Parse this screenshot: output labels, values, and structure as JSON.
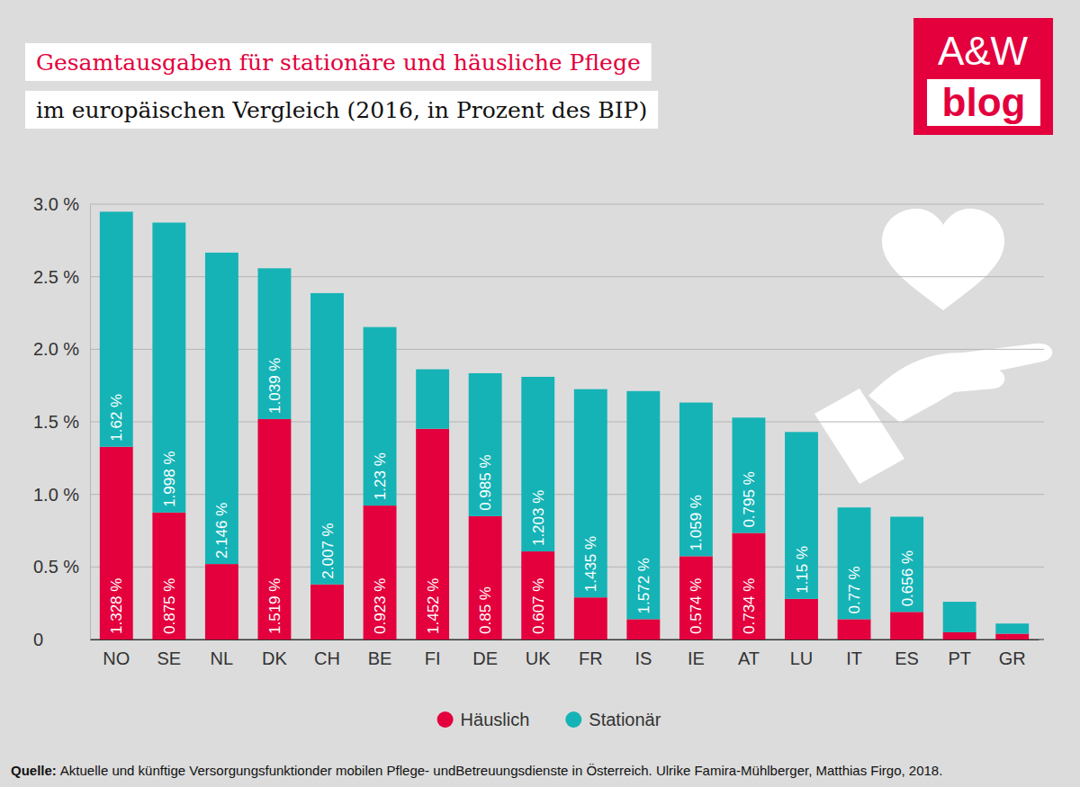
{
  "chart_data": {
    "type": "bar",
    "title": "Gesamtausgaben für stationäre und häusliche Pflege",
    "subtitle": "im europäischen Vergleich (2016, in Prozent des BIP)",
    "logo": [
      "A&W",
      "blog"
    ],
    "source_label": "Quelle:",
    "source": "Aktuelle und künftige Versorgungsfunktionder mobilen Pflege- undBetreuungsdienste in Österreich. Ulrike Famira-Mühlberger, Matthias Firgo, 2018.",
    "categories": [
      "NO",
      "SE",
      "NL",
      "DK",
      "CH",
      "BE",
      "FI",
      "DE",
      "UK",
      "FR",
      "IS",
      "IE",
      "AT",
      "LU",
      "IT",
      "ES",
      "PT",
      "GR"
    ],
    "series": [
      {
        "name": "Häuslich",
        "color": "#e3003d",
        "values": [
          1.328,
          0.875,
          0.52,
          1.519,
          0.38,
          0.923,
          1.452,
          0.85,
          0.607,
          0.29,
          0.14,
          0.574,
          0.734,
          0.28,
          0.14,
          0.19,
          0.05,
          0.04
        ],
        "value_labels": [
          "1.328 %",
          "0.875 %",
          null,
          "1.519 %",
          null,
          "0.923 %",
          "1.452 %",
          "0.85 %",
          "0.607 %",
          null,
          null,
          "0.574 %",
          "0.734 %",
          null,
          null,
          null,
          null,
          null
        ]
      },
      {
        "name": "Stationär",
        "color": "#15b3b6",
        "values": [
          1.62,
          1.998,
          2.146,
          1.039,
          2.007,
          1.23,
          0.41,
          0.985,
          1.203,
          1.435,
          1.572,
          1.059,
          0.795,
          1.15,
          0.77,
          0.656,
          0.21,
          0.07
        ],
        "value_labels": [
          "1.62 %",
          "1.998 %",
          "2.146 %",
          "1.039 %",
          "2.007 %",
          "1.23 %",
          null,
          "0.985 %",
          "1.203 %",
          "1.435 %",
          "1.572 %",
          "1.059 %",
          "0.795 %",
          "1.15 %",
          "0.77 %",
          "0.656 %",
          null,
          null
        ]
      }
    ],
    "ylim": [
      0,
      3
    ],
    "yticks": [
      {
        "value": 3,
        "label": "3.0 %"
      },
      {
        "value": 2.5,
        "label": "2.5 %"
      },
      {
        "value": 2,
        "label": "2.0 %"
      },
      {
        "value": 1.5,
        "label": "1.5 %"
      },
      {
        "value": 1,
        "label": "1.0 %"
      },
      {
        "value": 0.5,
        "label": "0.5 %"
      },
      0
    ],
    "stacked": true,
    "grid": true,
    "data_labels": true,
    "legend": "bottom"
  }
}
